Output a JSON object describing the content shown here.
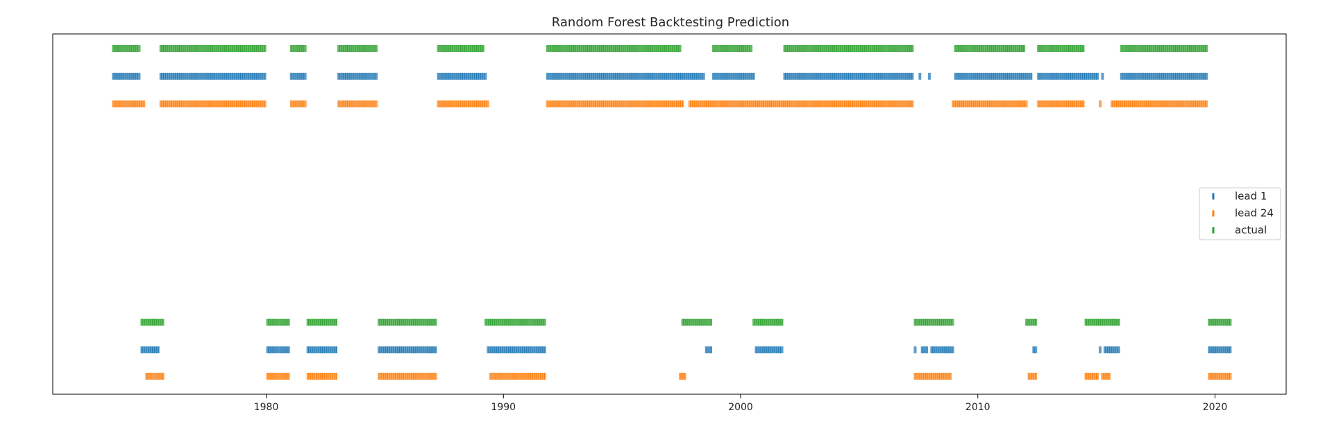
{
  "chart_data": {
    "type": "scatter",
    "title": "Random Forest Backtesting Prediction",
    "xlabel": "",
    "ylabel": "",
    "xlim": [
      1971.0,
      2023.0
    ],
    "x_ticks": [
      1980,
      1990,
      2000,
      2010,
      2020
    ],
    "x_tick_labels": [
      "1980",
      "1990",
      "2000",
      "2010",
      "2020"
    ],
    "y_ticks_shown": false,
    "grid": false,
    "legend_position": "center-right",
    "marker": "vertical-tick",
    "levels": [
      "upper-state",
      "lower-state"
    ],
    "series": [
      {
        "name": "lead 1",
        "color": "#1f77b4",
        "upper_segments": [
          [
            1973.5,
            1974.7
          ],
          [
            1975.5,
            1980.0
          ],
          [
            1981.0,
            1981.7
          ],
          [
            1983.0,
            1984.7
          ],
          [
            1987.2,
            1989.3
          ],
          [
            1991.8,
            1998.5
          ],
          [
            1998.8,
            2000.6
          ],
          [
            2001.8,
            2007.3
          ],
          [
            2007.5,
            2007.6
          ],
          [
            2007.9,
            2008.0
          ],
          [
            2009.0,
            2012.3
          ],
          [
            2012.5,
            2015.1
          ],
          [
            2015.2,
            2015.3
          ],
          [
            2016.0,
            2019.7
          ]
        ],
        "lower_segments": [
          [
            1974.7,
            1975.5
          ],
          [
            1980.0,
            1981.0
          ],
          [
            1981.7,
            1983.0
          ],
          [
            1984.7,
            1987.2
          ],
          [
            1989.3,
            1991.8
          ],
          [
            1998.5,
            1998.8
          ],
          [
            2000.6,
            2001.8
          ],
          [
            2007.3,
            2007.4
          ],
          [
            2007.6,
            2007.9
          ],
          [
            2008.0,
            2009.0
          ],
          [
            2012.3,
            2012.5
          ],
          [
            2015.1,
            2015.2
          ],
          [
            2015.3,
            2016.0
          ],
          [
            2019.7,
            2020.7
          ]
        ]
      },
      {
        "name": "lead 24",
        "color": "#ff7f0e",
        "upper_segments": [
          [
            1973.5,
            1974.9
          ],
          [
            1975.5,
            1980.0
          ],
          [
            1981.0,
            1981.7
          ],
          [
            1983.0,
            1984.7
          ],
          [
            1987.2,
            1989.4
          ],
          [
            1991.8,
            1997.6
          ],
          [
            1997.8,
            2007.3
          ],
          [
            2008.9,
            2012.1
          ],
          [
            2012.5,
            2014.5
          ],
          [
            2015.1,
            2015.2
          ],
          [
            2015.6,
            2019.7
          ]
        ],
        "lower_segments": [
          [
            1974.9,
            1975.7
          ],
          [
            1980.0,
            1981.0
          ],
          [
            1981.7,
            1983.0
          ],
          [
            1984.7,
            1987.2
          ],
          [
            1989.4,
            1991.8
          ],
          [
            1997.4,
            1997.7
          ],
          [
            2007.3,
            2008.9
          ],
          [
            2012.1,
            2012.5
          ],
          [
            2014.5,
            2015.1
          ],
          [
            2015.2,
            2015.6
          ],
          [
            2019.7,
            2020.7
          ]
        ]
      },
      {
        "name": "actual",
        "color": "#2ca02c",
        "upper_segments": [
          [
            1973.5,
            1974.7
          ],
          [
            1975.5,
            1980.0
          ],
          [
            1981.0,
            1981.7
          ],
          [
            1983.0,
            1984.7
          ],
          [
            1987.2,
            1989.2
          ],
          [
            1991.8,
            1997.5
          ],
          [
            1998.8,
            2000.5
          ],
          [
            2001.8,
            2007.3
          ],
          [
            2009.0,
            2012.0
          ],
          [
            2012.5,
            2014.5
          ],
          [
            2016.0,
            2019.7
          ]
        ],
        "lower_segments": [
          [
            1974.7,
            1975.7
          ],
          [
            1980.0,
            1981.0
          ],
          [
            1981.7,
            1983.0
          ],
          [
            1984.7,
            1987.2
          ],
          [
            1989.2,
            1991.8
          ],
          [
            1997.5,
            1998.8
          ],
          [
            2000.5,
            2001.8
          ],
          [
            2007.3,
            2009.0
          ],
          [
            2012.0,
            2012.5
          ],
          [
            2014.5,
            2016.0
          ],
          [
            2019.7,
            2020.7
          ]
        ]
      }
    ]
  }
}
